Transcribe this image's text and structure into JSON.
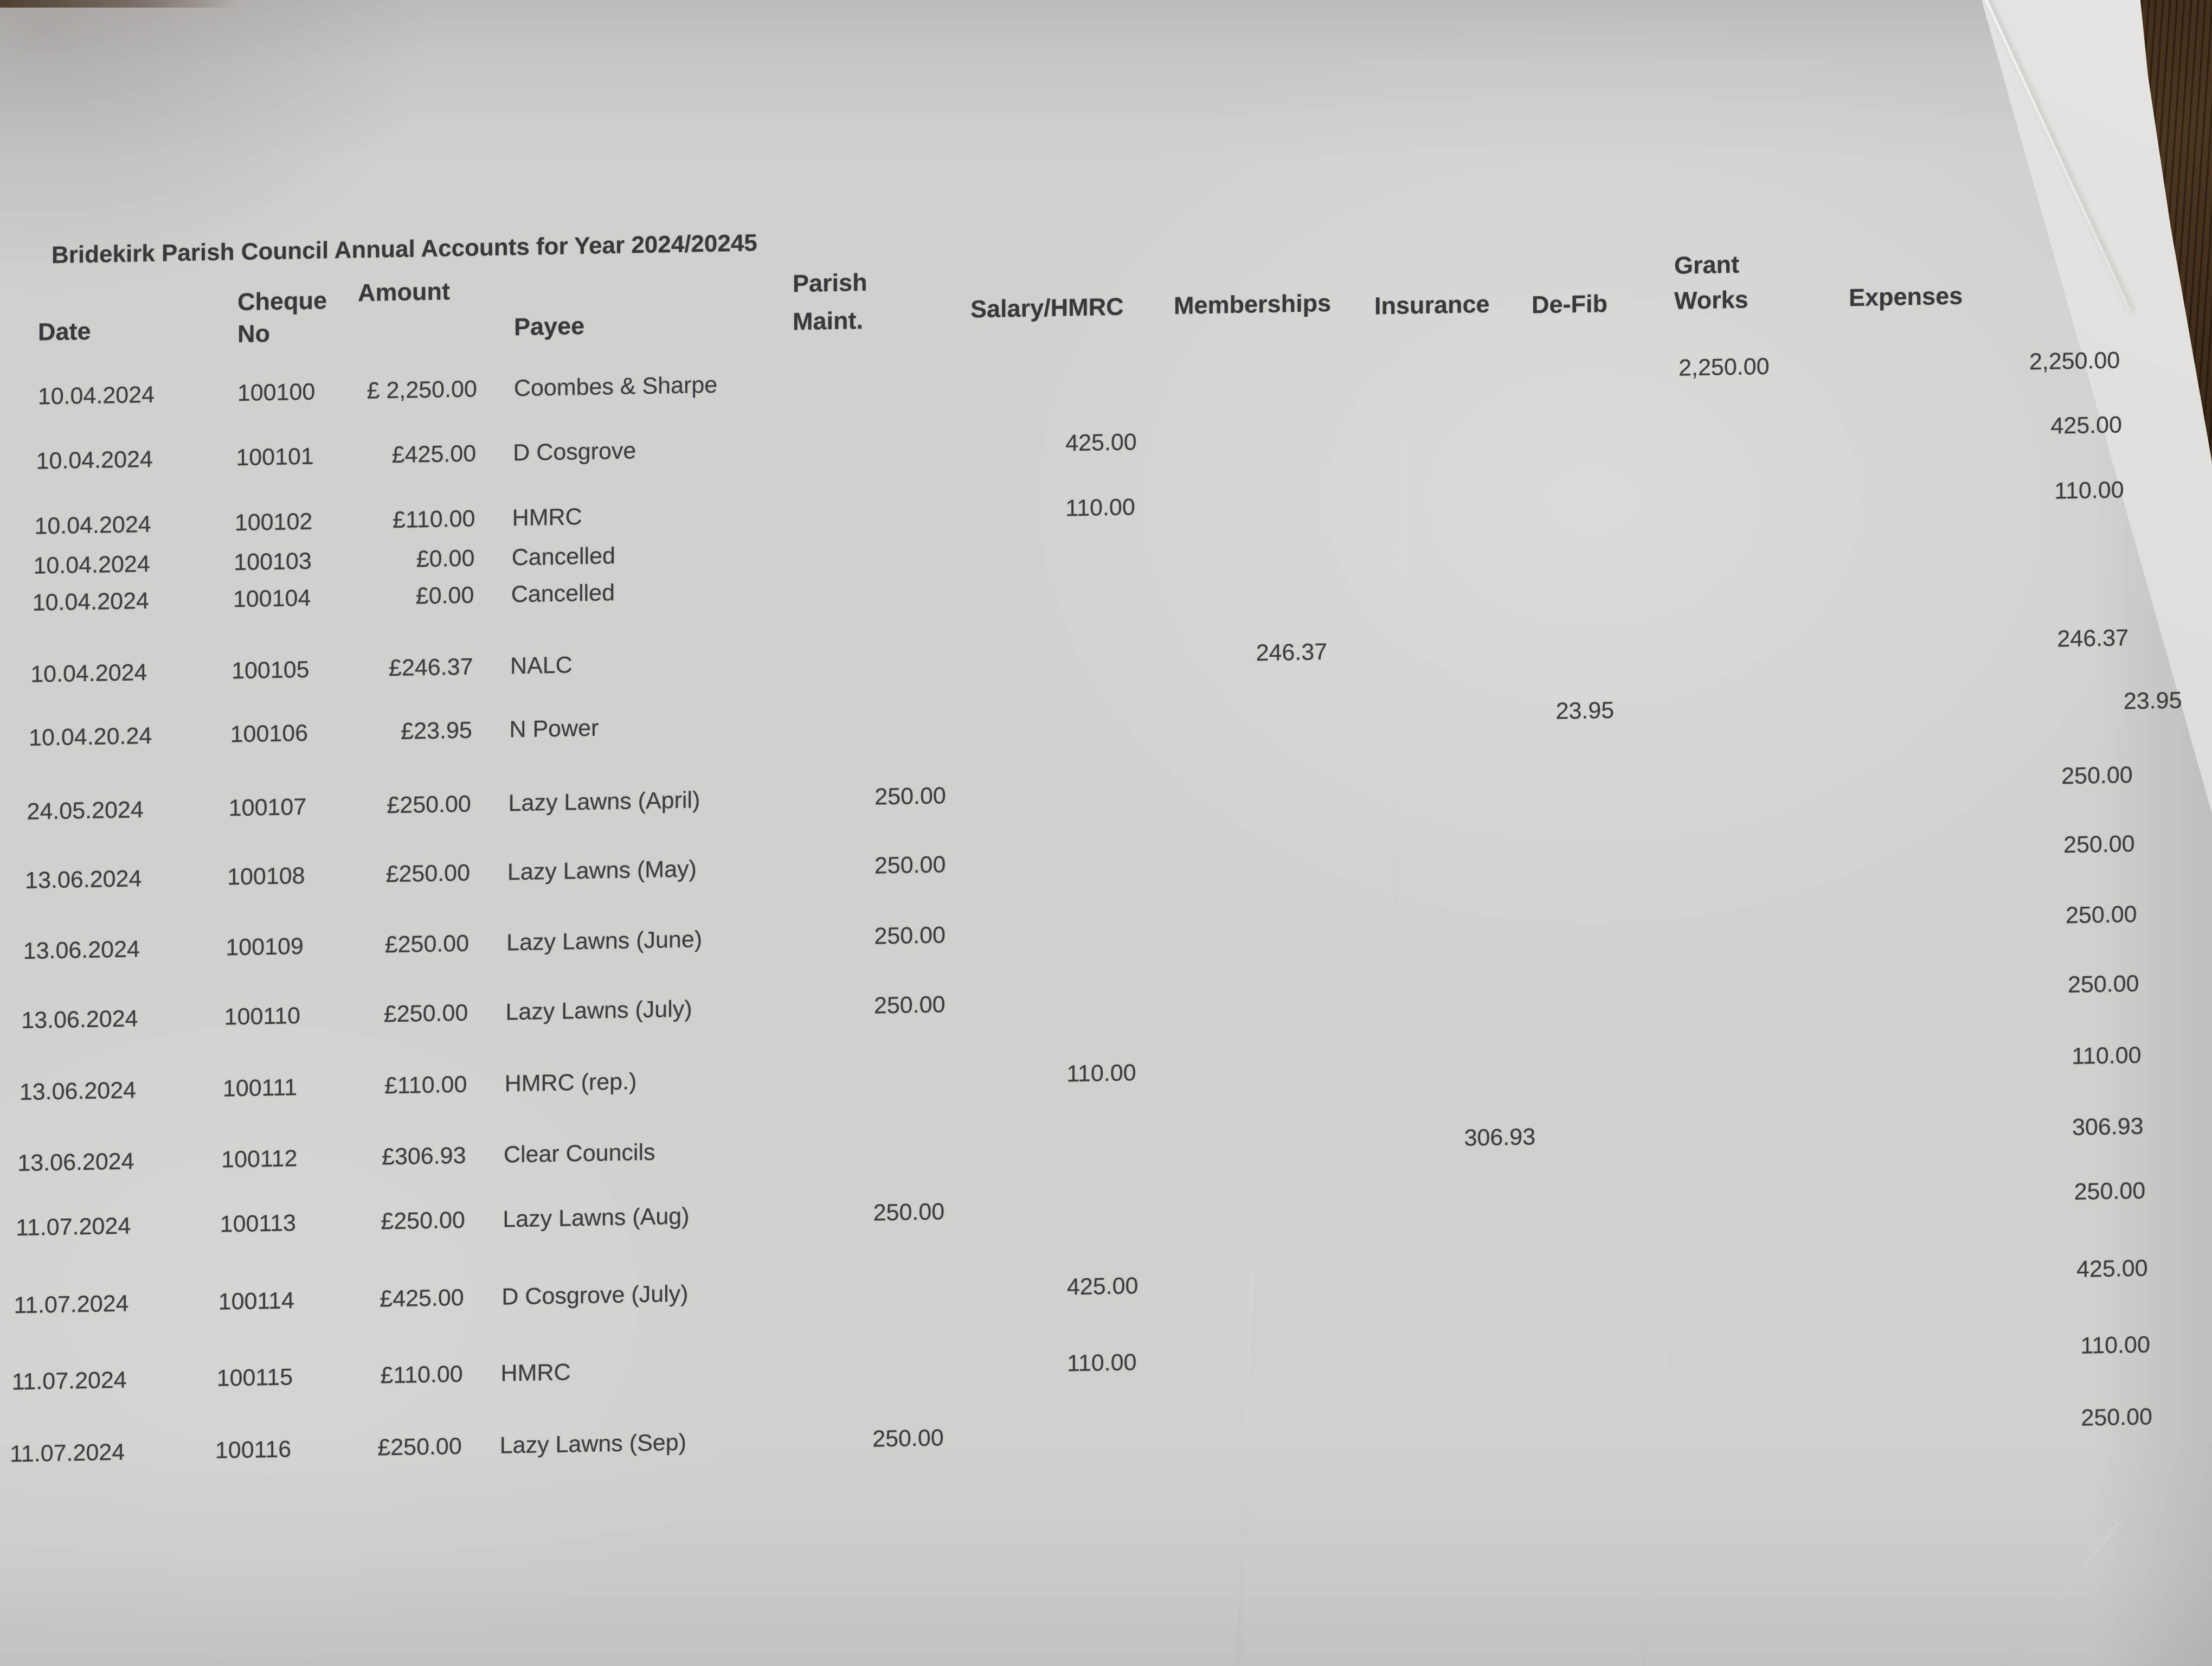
{
  "document": {
    "title": "Bridekirk Parish Council Annual Accounts for Year 2024/20245",
    "columns": {
      "date": "Date",
      "cheque": [
        "Cheque",
        "No"
      ],
      "amount": "Amount",
      "payee": "Payee",
      "parish_maint": [
        "Parish",
        "Maint."
      ],
      "salary": "Salary/HMRC",
      "memberships": "Memberships",
      "insurance": "Insurance",
      "defib": "De-Fib",
      "grant": [
        "Grant",
        "Works"
      ],
      "expenses": "Expenses"
    },
    "rows": [
      {
        "date": "10.04.2024",
        "cheque": "100100",
        "amount": "£ 2,250.00",
        "payee": "Coombes & Sharpe",
        "grant": "2,250.00",
        "expenses": "2,250.00"
      },
      {
        "date": "10.04.2024",
        "cheque": "100101",
        "amount": "£425.00",
        "payee": "D Cosgrove",
        "salary": "425.00",
        "expenses": "425.00"
      },
      {
        "date": "10.04.2024",
        "cheque": "100102",
        "amount": "£110.00",
        "payee": "HMRC",
        "salary": "110.00",
        "expenses": "110.00"
      },
      {
        "date": "10.04.2024",
        "cheque": "100103",
        "amount": "£0.00",
        "payee": "Cancelled"
      },
      {
        "date": "10.04.2024",
        "cheque": "100104",
        "amount": "£0.00",
        "payee": "Cancelled"
      },
      {
        "date": "10.04.2024",
        "cheque": "100105",
        "amount": "£246.37",
        "payee": "NALC",
        "memberships": "246.37",
        "expenses": "246.37"
      },
      {
        "date": "10.04.20.24",
        "cheque": "100106",
        "amount": "£23.95",
        "payee": "N Power",
        "defib": "23.95",
        "expenses": "23.95"
      },
      {
        "date": "24.05.2024",
        "cheque": "100107",
        "amount": "£250.00",
        "payee": "Lazy Lawns (April)",
        "parish_maint": "250.00",
        "expenses": "250.00"
      },
      {
        "date": "13.06.2024",
        "cheque": "100108",
        "amount": "£250.00",
        "payee": "Lazy Lawns (May)",
        "parish_maint": "250.00",
        "expenses": "250.00"
      },
      {
        "date": "13.06.2024",
        "cheque": "100109",
        "amount": "£250.00",
        "payee": "Lazy Lawns (June)",
        "parish_maint": "250.00",
        "expenses": "250.00"
      },
      {
        "date": "13.06.2024",
        "cheque": "100110",
        "amount": "£250.00",
        "payee": "Lazy Lawns (July)",
        "parish_maint": "250.00",
        "expenses": "250.00"
      },
      {
        "date": "13.06.2024",
        "cheque": "100111",
        "amount": "£110.00",
        "payee": "HMRC (rep.)",
        "salary": "110.00",
        "expenses": "110.00"
      },
      {
        "date": "13.06.2024",
        "cheque": "100112",
        "amount": "£306.93",
        "payee": "Clear Councils",
        "insurance": "306.93",
        "expenses": "306.93"
      },
      {
        "date": "11.07.2024",
        "cheque": "100113",
        "amount": "£250.00",
        "payee": "Lazy Lawns (Aug)",
        "parish_maint": "250.00",
        "expenses": "250.00"
      },
      {
        "date": "11.07.2024",
        "cheque": "100114",
        "amount": "£425.00",
        "payee": "D Cosgrove (July)",
        "salary": "425.00",
        "expenses": "425.00"
      },
      {
        "date": "11.07.2024",
        "cheque": "100115",
        "amount": "£110.00",
        "payee": "HMRC",
        "salary": "110.00",
        "expenses": "110.00"
      },
      {
        "date": "11.07.2024",
        "cheque": "100116",
        "amount": "£250.00",
        "payee": "Lazy Lawns (Sep)",
        "parish_maint": "250.00",
        "expenses": "250.00"
      }
    ]
  }
}
